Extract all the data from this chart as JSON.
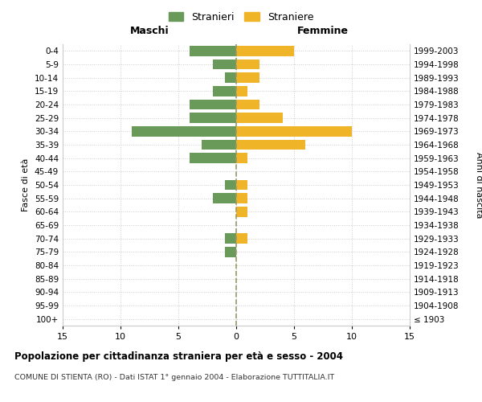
{
  "age_groups": [
    "100+",
    "95-99",
    "90-94",
    "85-89",
    "80-84",
    "75-79",
    "70-74",
    "65-69",
    "60-64",
    "55-59",
    "50-54",
    "45-49",
    "40-44",
    "35-39",
    "30-34",
    "25-29",
    "20-24",
    "15-19",
    "10-14",
    "5-9",
    "0-4"
  ],
  "birth_years": [
    "≤ 1903",
    "1904-1908",
    "1909-1913",
    "1914-1918",
    "1919-1923",
    "1924-1928",
    "1929-1933",
    "1934-1938",
    "1939-1943",
    "1944-1948",
    "1949-1953",
    "1954-1958",
    "1959-1963",
    "1964-1968",
    "1969-1973",
    "1974-1978",
    "1979-1983",
    "1984-1988",
    "1989-1993",
    "1994-1998",
    "1999-2003"
  ],
  "males": [
    0,
    0,
    0,
    0,
    0,
    1,
    1,
    0,
    0,
    2,
    1,
    0,
    4,
    3,
    9,
    4,
    4,
    2,
    1,
    2,
    4
  ],
  "females": [
    0,
    0,
    0,
    0,
    0,
    0,
    1,
    0,
    1,
    1,
    1,
    0,
    1,
    6,
    10,
    4,
    2,
    1,
    2,
    2,
    5
  ],
  "male_color": "#6a9a5a",
  "female_color": "#f0b429",
  "xlim": 15,
  "title": "Popolazione per cittadinanza straniera per età e sesso - 2004",
  "subtitle": "COMUNE DI STIENTA (RO) - Dati ISTAT 1° gennaio 2004 - Elaborazione TUTTITALIA.IT",
  "ylabel_left": "Fasce di età",
  "ylabel_right": "Anni di nascita",
  "legend_stranieri": "Stranieri",
  "legend_straniere": "Straniere",
  "maschi_label": "Maschi",
  "femmine_label": "Femmine",
  "bg_color": "#ffffff",
  "grid_color": "#cccccc",
  "bar_height": 0.75
}
